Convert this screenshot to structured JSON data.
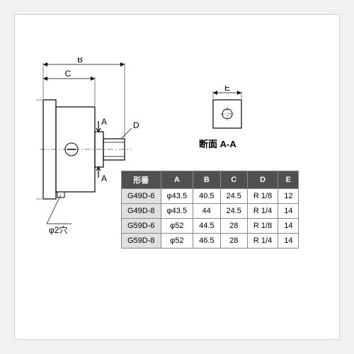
{
  "diagram": {
    "main": {
      "dim_A": "A",
      "dim_B": "B",
      "dim_C": "C",
      "dim_D": "D",
      "section_marker": "A",
      "hole_note": "φ2穴"
    },
    "section": {
      "dim_E": "E",
      "label": "断面 A-A"
    },
    "style": {
      "stroke": "#000000",
      "stroke_thin": 0.7,
      "stroke_med": 1.2,
      "fill_body": "#ffffff",
      "font_size_dim": 12
    }
  },
  "table": {
    "headers": [
      "形番",
      "A",
      "B",
      "C",
      "D",
      "E"
    ],
    "rows": [
      [
        "G49D-6",
        "φ43.5",
        "40.5",
        "24.5",
        "R 1/8",
        "12"
      ],
      [
        "G49D-8",
        "φ43.5",
        "44",
        "24.5",
        "R 1/4",
        "14"
      ],
      [
        "G59D-6",
        "φ52",
        "44.5",
        "28",
        "R 1/8",
        "14"
      ],
      [
        "G59D-8",
        "φ52",
        "46.5",
        "28",
        "R 1/4",
        "14"
      ]
    ],
    "style": {
      "header_bg": "#505050",
      "header_fg": "#ffffff",
      "firstcol_bg": "#e0e0e0",
      "border": "#888888",
      "font_size": 11
    }
  }
}
